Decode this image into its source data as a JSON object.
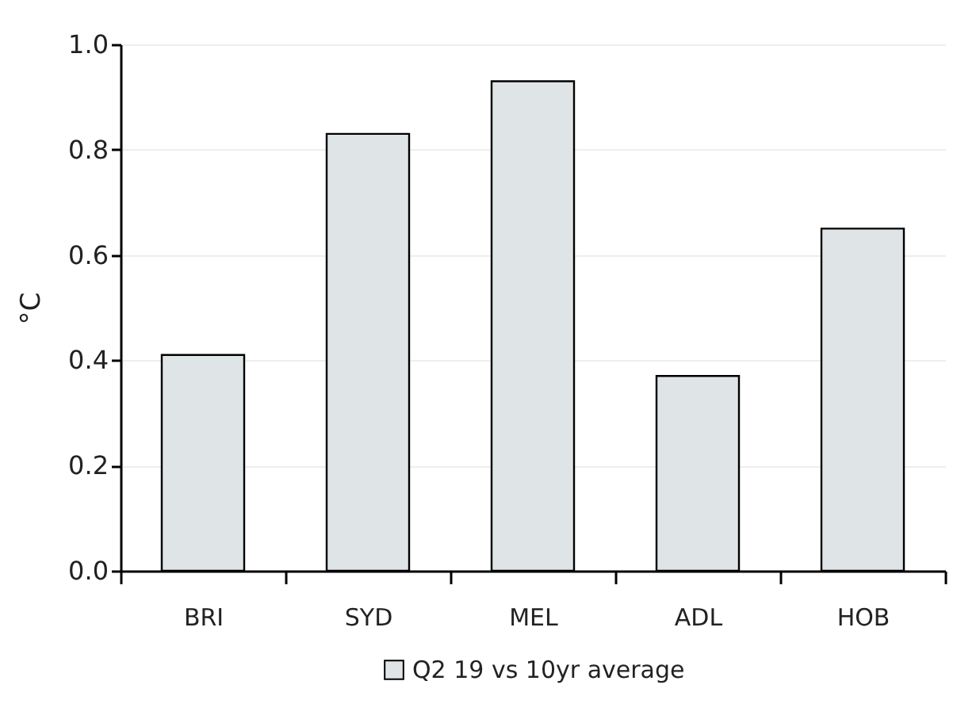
{
  "chart_data": {
    "type": "bar",
    "ylabel": "°C",
    "categories": [
      "BRI",
      "SYD",
      "MEL",
      "ADL",
      "HOB"
    ],
    "series": [
      {
        "name": "Q2 19 vs 10yr average",
        "color": "#dfe5e6",
        "values": [
          0.41,
          0.83,
          0.93,
          0.37,
          0.65
        ]
      }
    ],
    "ylim": [
      0,
      1.0
    ],
    "yticks": [
      {
        "value": 0,
        "label": "0.0"
      },
      {
        "value": 0.2,
        "label": "0.2"
      },
      {
        "value": 0.4,
        "label": "0.4"
      },
      {
        "value": 0.6,
        "label": "0.6"
      },
      {
        "value": 0.8,
        "label": "0.8"
      },
      {
        "value": 1.0,
        "label": "1.0"
      }
    ],
    "grid": "y",
    "legend": "bottom"
  }
}
